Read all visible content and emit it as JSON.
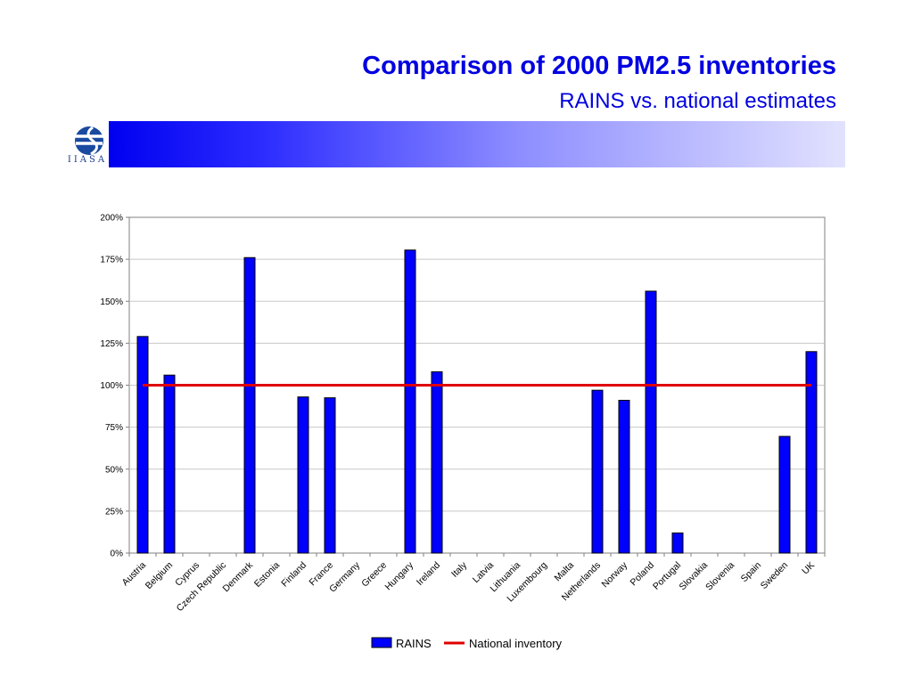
{
  "slide": {
    "title": "Comparison of 2000 PM2.5 inventories",
    "subtitle": "RAINS vs. national estimates",
    "logo_text": "IIASA"
  },
  "colors": {
    "title": "#0000e0",
    "bar": "#0000ff",
    "reference_line": "#e00000"
  },
  "icons": {
    "logo": "iiasa-globe-logo"
  },
  "chart_data": {
    "type": "bar",
    "title": "",
    "xlabel": "",
    "ylabel": "",
    "ylim": [
      0,
      200
    ],
    "yticks": [
      "0%",
      "25%",
      "50%",
      "75%",
      "100%",
      "125%",
      "150%",
      "175%",
      "200%"
    ],
    "grid": true,
    "legend_placement": "bottom-center",
    "categories": [
      "Austria",
      "Belgium",
      "Cyprus",
      "Czech Republic",
      "Denmark",
      "Estonia",
      "Finland",
      "France",
      "Germany",
      "Greece",
      "Hungary",
      "Ireland",
      "Italy",
      "Latvia",
      "Lithuania",
      "Luxembourg",
      "Malta",
      "Netherlands",
      "Norway",
      "Poland",
      "Portugal",
      "Slovakia",
      "Slovenia",
      "Spain",
      "Sweden",
      "UK"
    ],
    "series": [
      {
        "name": "RAINS",
        "type": "bar",
        "values": [
          129,
          106,
          null,
          null,
          176,
          null,
          93,
          92.5,
          null,
          null,
          180.5,
          108,
          null,
          null,
          null,
          null,
          null,
          97,
          91,
          156,
          12,
          null,
          null,
          null,
          69.5,
          120
        ]
      },
      {
        "name": "National inventory",
        "type": "line",
        "values": [
          100,
          100,
          100,
          100,
          100,
          100,
          100,
          100,
          100,
          100,
          100,
          100,
          100,
          100,
          100,
          100,
          100,
          100,
          100,
          100,
          100,
          100,
          100,
          100,
          100,
          100
        ]
      }
    ]
  }
}
